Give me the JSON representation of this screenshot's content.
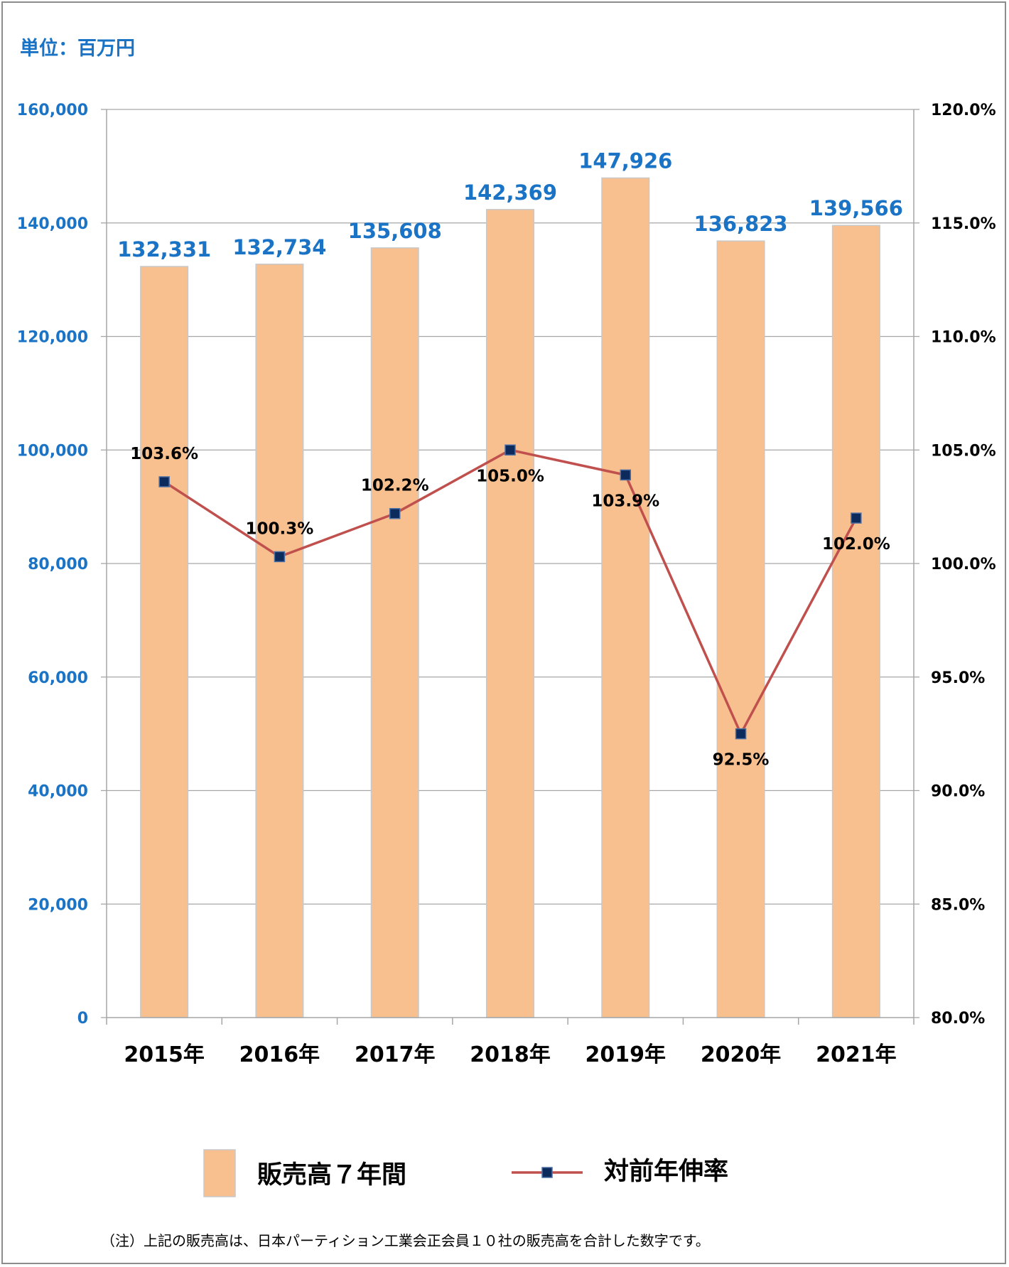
{
  "unit_label": "単位：百万円",
  "footnote": "（注）上記の販売高は、日本パーティション工業会正会員１０社の販売高を合計した数字です。",
  "colors": {
    "bar_fill": "#f9c08f",
    "bar_stroke": "#c8c8c8",
    "line": "#c0504d",
    "marker": "#0d2a5c",
    "blue_label": "#1a73c4",
    "grid": "#a6a6a6"
  },
  "chart_data": {
    "type": "bar",
    "categories": [
      "2015年",
      "2016年",
      "2017年",
      "2018年",
      "2019年",
      "2020年",
      "2021年"
    ],
    "series": [
      {
        "name": "販売高７年間",
        "type": "bar",
        "axis": "left",
        "values": [
          132331,
          132734,
          135608,
          142369,
          147926,
          136823,
          139566
        ],
        "labels": [
          "132,331",
          "132,734",
          "135,608",
          "142,369",
          "147,926",
          "136,823",
          "139,566"
        ]
      },
      {
        "name": "対前年伸率",
        "type": "line",
        "axis": "right",
        "values": [
          103.6,
          100.3,
          102.2,
          105.0,
          103.9,
          92.5,
          102.0
        ],
        "labels": [
          "103.6%",
          "100.3%",
          "102.2%",
          "105.0%",
          "103.9%",
          "92.5%",
          "102.0%"
        ],
        "label_position": [
          "above",
          "above",
          "above",
          "below",
          "below",
          "below",
          "below"
        ]
      }
    ],
    "y_left": {
      "range": [
        0,
        160000
      ],
      "ticks": [
        0,
        20000,
        40000,
        60000,
        80000,
        100000,
        120000,
        140000,
        160000
      ],
      "tick_labels": [
        "0",
        "20,000",
        "40,000",
        "60,000",
        "80,000",
        "100,000",
        "120,000",
        "140,000",
        "160,000"
      ]
    },
    "y_right": {
      "range": [
        80,
        120
      ],
      "ticks": [
        80,
        85,
        90,
        95,
        100,
        105,
        110,
        115,
        120
      ],
      "tick_labels": [
        "80.0%",
        "85.0%",
        "90.0%",
        "95.0%",
        "100.0%",
        "105.0%",
        "110.0%",
        "115.0%",
        "120.0%"
      ]
    },
    "grid": true,
    "legend_position": "bottom"
  }
}
